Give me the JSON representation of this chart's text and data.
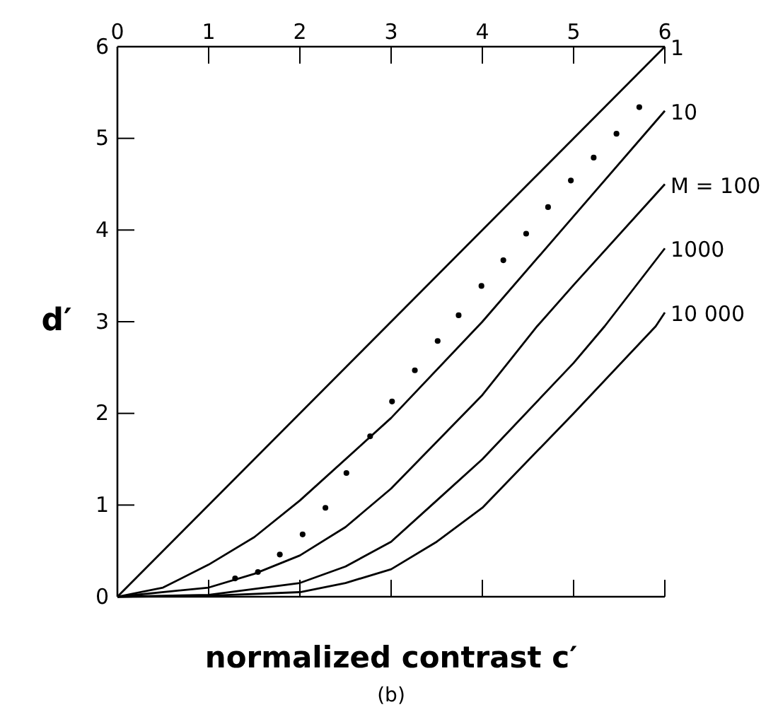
{
  "chart_data": {
    "type": "line",
    "xlabel": "normalized contrast c′",
    "ylabel": "d′",
    "annotations": [
      "(b)"
    ],
    "xlim": [
      0,
      6
    ],
    "xticks": [
      0,
      1,
      2,
      3,
      4,
      5,
      6
    ],
    "ylim": [
      0,
      6
    ],
    "yticks": [
      0,
      1,
      2,
      3,
      4,
      5,
      6
    ],
    "grid": false,
    "line_style": "solid",
    "series": [
      {
        "name": "1",
        "color": "#000000",
        "x": [
          0,
          6
        ],
        "values": [
          0,
          6
        ]
      },
      {
        "name": "10",
        "color": "#000000",
        "x": [
          0,
          0.5,
          1,
          1.5,
          2,
          3,
          4,
          5,
          6
        ],
        "values": [
          0,
          0.1,
          0.35,
          0.65,
          1.05,
          1.95,
          3.0,
          4.15,
          5.3
        ]
      },
      {
        "name": "M = 100",
        "color": "#000000",
        "x": [
          0,
          1,
          1.5,
          2,
          2.5,
          3,
          4,
          4.6,
          5,
          6
        ],
        "values": [
          0,
          0.1,
          0.25,
          0.45,
          0.76,
          1.18,
          2.2,
          2.95,
          3.4,
          4.5
        ]
      },
      {
        "name": "1000",
        "color": "#000000",
        "x": [
          0,
          1,
          2,
          2.5,
          3,
          3.5,
          4,
          5,
          5.34,
          6
        ],
        "values": [
          0,
          0.02,
          0.15,
          0.33,
          0.6,
          1.05,
          1.5,
          2.55,
          2.95,
          3.8
        ]
      },
      {
        "name": "10 000",
        "color": "#000000",
        "x": [
          0,
          1,
          2,
          2.5,
          3,
          3.5,
          4,
          5,
          5.9,
          6
        ],
        "values": [
          0,
          0.01,
          0.05,
          0.15,
          0.3,
          0.6,
          0.97,
          2.0,
          2.95,
          3.1
        ]
      },
      {
        "type": "scatter",
        "marker": "circle",
        "color": "#000000",
        "x": [
          1.29,
          1.54,
          1.78,
          2.03,
          2.28,
          2.51,
          2.77,
          3.01,
          3.26,
          3.51,
          3.74,
          3.99,
          4.23,
          4.48,
          4.72,
          4.97,
          5.22,
          5.47,
          5.72
        ],
        "values": [
          0.2,
          0.27,
          0.46,
          0.68,
          0.97,
          1.35,
          1.75,
          2.13,
          2.47,
          2.79,
          3.07,
          3.39,
          3.67,
          3.96,
          4.25,
          4.54,
          4.79,
          5.05,
          5.34
        ]
      }
    ]
  }
}
